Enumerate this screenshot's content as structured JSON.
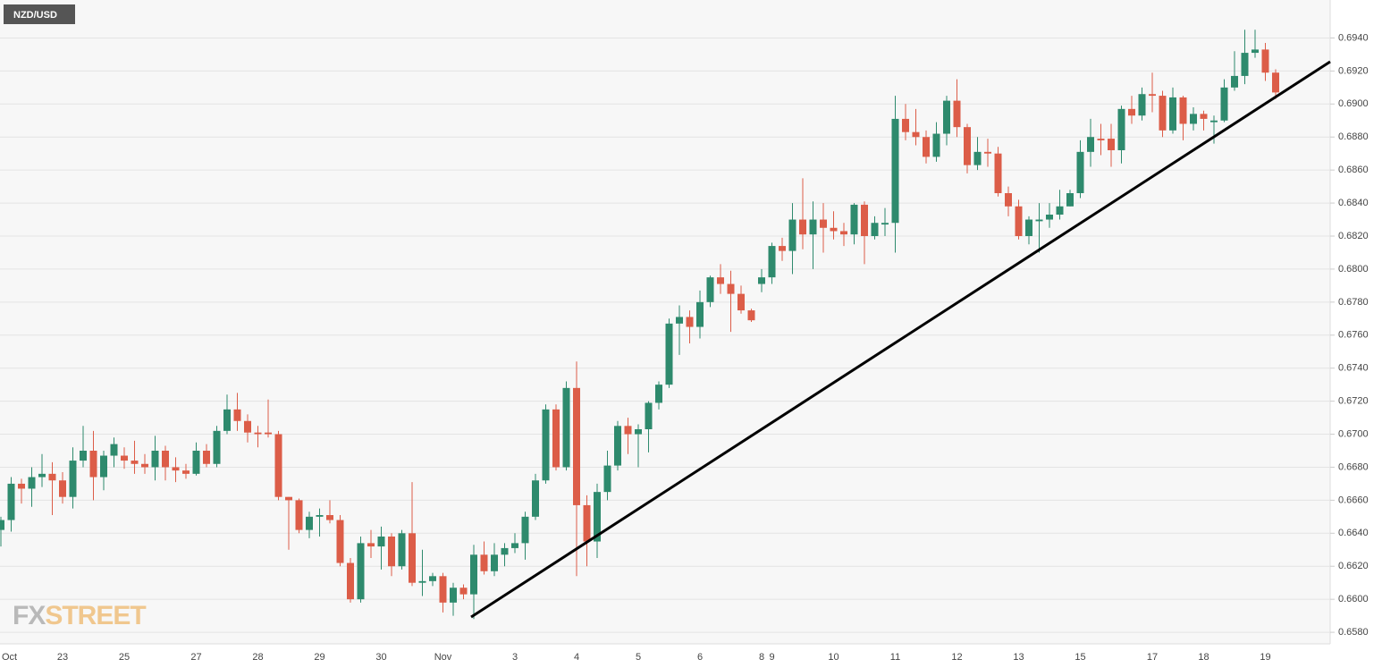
{
  "chart_data": {
    "type": "candlestick",
    "title": "NZD/USD",
    "watermark": [
      "FX",
      "STREET"
    ],
    "categories": [
      "Oct",
      null,
      null,
      null,
      null,
      null,
      "23",
      null,
      null,
      null,
      null,
      null,
      "25",
      null,
      null,
      null,
      null,
      null,
      null,
      "27",
      null,
      null,
      null,
      null,
      null,
      "28",
      null,
      null,
      null,
      null,
      null,
      "29",
      null,
      null,
      null,
      null,
      null,
      "30",
      null,
      null,
      null,
      null,
      null,
      "Nov",
      null,
      null,
      null,
      null,
      null,
      null,
      "3",
      null,
      null,
      null,
      null,
      null,
      "4",
      null,
      null,
      null,
      null,
      null,
      "5",
      null,
      null,
      null,
      null,
      null,
      "6",
      null,
      null,
      null,
      null,
      null,
      "8",
      "9",
      null,
      null,
      null,
      null,
      null,
      "10",
      null,
      null,
      null,
      null,
      null,
      "11",
      null,
      null,
      null,
      null,
      null,
      "12",
      null,
      null,
      null,
      null,
      null,
      "13",
      null,
      null,
      null,
      null,
      null,
      "15",
      null,
      null,
      null,
      null,
      null,
      null,
      "17",
      null,
      null,
      null,
      null,
      "18",
      null,
      null,
      null,
      null,
      null,
      "19",
      null
    ],
    "open": [
      0.6642,
      0.6648,
      0.667,
      0.6667,
      0.6674,
      0.6676,
      0.6672,
      0.6662,
      0.6684,
      0.669,
      0.6674,
      0.6687,
      0.6687,
      0.6684,
      0.6682,
      0.668,
      0.669,
      0.668,
      0.6678,
      0.6676,
      0.669,
      0.6682,
      0.6702,
      0.6715,
      0.6708,
      0.6701,
      0.6701,
      0.67,
      0.6662,
      0.666,
      0.6642,
      0.665,
      0.6651,
      0.6648,
      0.6622,
      0.66,
      0.6634,
      0.6632,
      0.6638,
      0.662,
      0.664,
      0.661,
      0.6611,
      0.6614,
      0.6598,
      0.6607,
      0.6603,
      0.6627,
      0.6617,
      0.6627,
      0.6631,
      0.6634,
      0.665,
      0.6672,
      0.6715,
      0.668,
      0.6728,
      0.6657,
      0.6635,
      0.6665,
      0.6681,
      0.6705,
      0.67,
      0.6703,
      0.6719,
      0.673,
      0.6767,
      0.6771,
      0.6765,
      0.678,
      0.6795,
      0.6791,
      0.6785,
      0.6775,
      0.6791,
      0.6795,
      0.6814,
      0.6811,
      0.683,
      0.6821,
      0.683,
      0.6825,
      0.6823,
      0.6821,
      0.6839,
      0.682,
      0.6827,
      0.6828,
      0.6891,
      0.6883,
      0.688,
      0.6868,
      0.6882,
      0.6902,
      0.6886,
      0.6863,
      0.6871,
      0.687,
      0.6846,
      0.6838,
      0.682,
      0.6829,
      0.683,
      0.6833,
      0.6838,
      0.6846,
      0.6871,
      0.6879,
      0.6879,
      0.6872,
      0.6897,
      0.6893,
      0.6906,
      0.6905,
      0.6884,
      0.6904,
      0.6888,
      0.6894,
      0.6889,
      0.689,
      0.691,
      0.6917,
      0.6931,
      0.6933,
      0.6919
    ],
    "high": [
      0.665,
      0.6674,
      0.6673,
      0.668,
      0.6688,
      0.6683,
      0.6677,
      0.6692,
      0.6705,
      0.6702,
      0.669,
      0.6698,
      0.6692,
      0.6696,
      0.6688,
      0.6699,
      0.6693,
      0.6686,
      0.6682,
      0.6695,
      0.6694,
      0.6705,
      0.6724,
      0.6725,
      0.6712,
      0.6705,
      0.6721,
      0.6702,
      0.6662,
      0.6661,
      0.6653,
      0.6655,
      0.666,
      0.6651,
      0.6625,
      0.6638,
      0.6642,
      0.6644,
      0.664,
      0.6642,
      0.6671,
      0.663,
      0.6616,
      0.6616,
      0.661,
      0.6609,
      0.6633,
      0.6635,
      0.6634,
      0.6634,
      0.664,
      0.6653,
      0.6676,
      0.6718,
      0.6718,
      0.6732,
      0.6744,
      0.6663,
      0.667,
      0.669,
      0.6708,
      0.671,
      0.6706,
      0.672,
      0.6732,
      0.677,
      0.6778,
      0.6775,
      0.6787,
      0.6796,
      0.6803,
      0.6799,
      0.679,
      0.6776,
      0.68,
      0.6816,
      0.6819,
      0.684,
      0.6855,
      0.6841,
      0.684,
      0.6835,
      0.6828,
      0.684,
      0.6841,
      0.6832,
      0.6837,
      0.6905,
      0.69,
      0.6897,
      0.6884,
      0.6889,
      0.6905,
      0.6915,
      0.6888,
      0.688,
      0.6879,
      0.6874,
      0.685,
      0.6842,
      0.6832,
      0.684,
      0.684,
      0.6848,
      0.6848,
      0.6878,
      0.6891,
      0.6888,
      0.6888,
      0.6899,
      0.6905,
      0.691,
      0.6919,
      0.6908,
      0.691,
      0.6905,
      0.6898,
      0.6896,
      0.6893,
      0.6915,
      0.6932,
      0.6945,
      0.6945,
      0.6937,
      0.6921
    ],
    "low": [
      0.6632,
      0.6641,
      0.6658,
      0.6656,
      0.6668,
      0.6651,
      0.6658,
      0.6655,
      0.668,
      0.666,
      0.6666,
      0.668,
      0.6679,
      0.6676,
      0.6676,
      0.6672,
      0.6672,
      0.6671,
      0.6673,
      0.6675,
      0.668,
      0.668,
      0.67,
      0.6702,
      0.6695,
      0.6692,
      0.6698,
      0.666,
      0.663,
      0.664,
      0.6637,
      0.6638,
      0.6646,
      0.662,
      0.6598,
      0.6598,
      0.6625,
      0.6618,
      0.6614,
      0.6618,
      0.6608,
      0.6602,
      0.6608,
      0.6592,
      0.659,
      0.66,
      0.6588,
      0.6615,
      0.6614,
      0.662,
      0.6628,
      0.6624,
      0.6648,
      0.667,
      0.6678,
      0.6678,
      0.6614,
      0.662,
      0.6625,
      0.666,
      0.6678,
      0.6688,
      0.668,
      0.6689,
      0.6715,
      0.6728,
      0.6748,
      0.6755,
      0.6758,
      0.6777,
      0.6785,
      0.6762,
      0.6773,
      0.6768,
      0.6786,
      0.6791,
      0.6805,
      0.6797,
      0.6812,
      0.68,
      0.681,
      0.6818,
      0.6814,
      0.6815,
      0.6803,
      0.6818,
      0.682,
      0.681,
      0.6878,
      0.6875,
      0.6864,
      0.6865,
      0.6875,
      0.688,
      0.6858,
      0.686,
      0.6862,
      0.6844,
      0.6832,
      0.6818,
      0.6815,
      0.681,
      0.6825,
      0.683,
      0.6838,
      0.6843,
      0.6862,
      0.6869,
      0.6862,
      0.6864,
      0.6888,
      0.689,
      0.6895,
      0.688,
      0.6882,
      0.6878,
      0.6884,
      0.6884,
      0.6876,
      0.6889,
      0.6908,
      0.6912,
      0.6928,
      0.6914,
      0.6903
    ],
    "close": [
      0.6648,
      0.667,
      0.6667,
      0.6674,
      0.6676,
      0.6672,
      0.6662,
      0.6684,
      0.669,
      0.6674,
      0.6687,
      0.6694,
      0.6684,
      0.6682,
      0.668,
      0.669,
      0.668,
      0.6678,
      0.6676,
      0.669,
      0.6682,
      0.6702,
      0.6715,
      0.6708,
      0.6701,
      0.67,
      0.67,
      0.6662,
      0.666,
      0.6642,
      0.665,
      0.6651,
      0.6648,
      0.6622,
      0.66,
      0.6634,
      0.6632,
      0.6638,
      0.662,
      0.664,
      0.661,
      0.6611,
      0.6614,
      0.6598,
      0.6607,
      0.6603,
      0.6627,
      0.6617,
      0.6627,
      0.6631,
      0.6634,
      0.665,
      0.6672,
      0.6715,
      0.668,
      0.6728,
      0.6657,
      0.6635,
      0.6665,
      0.6681,
      0.6705,
      0.67,
      0.6703,
      0.6719,
      0.673,
      0.6767,
      0.6771,
      0.6765,
      0.678,
      0.6795,
      0.6791,
      0.6785,
      0.6775,
      0.6769,
      0.6795,
      0.6814,
      0.6811,
      0.683,
      0.6821,
      0.683,
      0.6825,
      0.6823,
      0.6821,
      0.6839,
      0.682,
      0.6828,
      0.6828,
      0.6891,
      0.6883,
      0.688,
      0.6868,
      0.6882,
      0.6902,
      0.6886,
      0.6863,
      0.6871,
      0.687,
      0.6846,
      0.6838,
      0.682,
      0.683,
      0.683,
      0.6833,
      0.6838,
      0.6846,
      0.6871,
      0.688,
      0.6878,
      0.6872,
      0.6897,
      0.6893,
      0.6906,
      0.6905,
      0.6884,
      0.6904,
      0.6888,
      0.6894,
      0.6891,
      0.689,
      0.691,
      0.6917,
      0.6931,
      0.6933,
      0.6919,
      0.6907
    ],
    "up_color": "#2e8a6d",
    "down_color": "#dc5d48",
    "ylim": [
      0.6573,
      0.6963
    ],
    "yticks": [
      {
        "value": 0.658,
        "label": "0.6580"
      },
      {
        "value": 0.66,
        "label": "0.6600"
      },
      {
        "value": 0.662,
        "label": "0.6620"
      },
      {
        "value": 0.664,
        "label": "0.6640"
      },
      {
        "value": 0.666,
        "label": "0.6660"
      },
      {
        "value": 0.668,
        "label": "0.6680"
      },
      {
        "value": 0.67,
        "label": "0.6700"
      },
      {
        "value": 0.672,
        "label": "0.6720"
      },
      {
        "value": 0.674,
        "label": "0.6740"
      },
      {
        "value": 0.676,
        "label": "0.6760"
      },
      {
        "value": 0.678,
        "label": "0.6780"
      },
      {
        "value": 0.68,
        "label": "0.6800"
      },
      {
        "value": 0.682,
        "label": "0.6820"
      },
      {
        "value": 0.684,
        "label": "0.6840"
      },
      {
        "value": 0.686,
        "label": "0.6860"
      },
      {
        "value": 0.688,
        "label": "0.6880"
      },
      {
        "value": 0.69,
        "label": "0.6900"
      },
      {
        "value": 0.692,
        "label": "0.6920"
      },
      {
        "value": 0.694,
        "label": "0.6940"
      }
    ],
    "grid": true
  }
}
